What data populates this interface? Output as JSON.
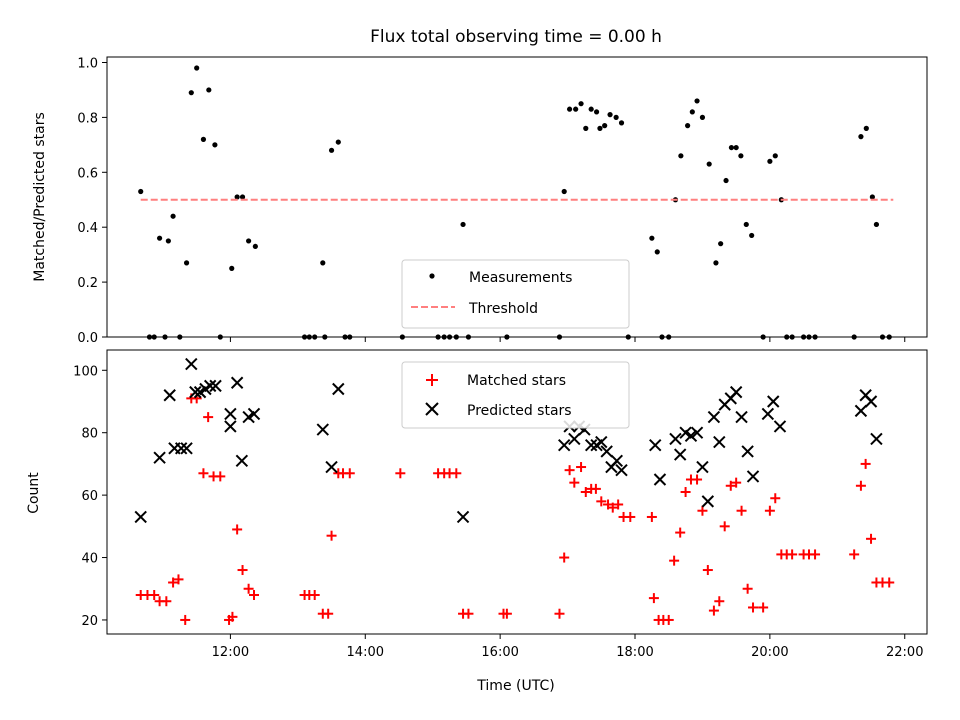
{
  "chart_data": [
    {
      "type": "scatter",
      "title": "Flux total observing time = 0.00 h",
      "xlabel": "",
      "ylabel": "Matched/Predicted stars",
      "xlim": [
        10.17,
        22.33
      ],
      "ylim": [
        0,
        1.02
      ],
      "yticks": [
        "0.0",
        "0.2",
        "0.4",
        "0.6",
        "0.8",
        "1.0"
      ],
      "legend": {
        "placement": "lower-center",
        "entries": [
          "Measurements",
          "Threshold"
        ]
      },
      "colors": {
        "measurements": "#000000",
        "threshold": "#ff7f7f"
      },
      "series": [
        {
          "name": "Measurements",
          "marker": "dot",
          "points": [
            [
              10.67,
              0.53
            ],
            [
              10.8,
              0
            ],
            [
              10.87,
              0
            ],
            [
              10.95,
              0.36
            ],
            [
              11.03,
              0
            ],
            [
              11.08,
              0.35
            ],
            [
              11.15,
              0.44
            ],
            [
              11.25,
              0
            ],
            [
              11.35,
              0.27
            ],
            [
              11.42,
              0.89
            ],
            [
              11.5,
              0.98
            ],
            [
              11.6,
              0.72
            ],
            [
              11.68,
              0.9
            ],
            [
              11.77,
              0.7
            ],
            [
              11.85,
              0
            ],
            [
              12.02,
              0.25
            ],
            [
              12.1,
              0.51
            ],
            [
              12.18,
              0.51
            ],
            [
              12.27,
              0.35
            ],
            [
              12.37,
              0.33
            ],
            [
              13.1,
              0
            ],
            [
              13.17,
              0
            ],
            [
              13.25,
              0
            ],
            [
              13.37,
              0.27
            ],
            [
              13.4,
              0
            ],
            [
              13.5,
              0.68
            ],
            [
              13.6,
              0.71
            ],
            [
              13.7,
              0
            ],
            [
              13.77,
              0
            ],
            [
              14.55,
              0
            ],
            [
              15.08,
              0
            ],
            [
              15.17,
              0
            ],
            [
              15.25,
              0
            ],
            [
              15.35,
              0
            ],
            [
              15.45,
              0.41
            ],
            [
              15.53,
              0
            ],
            [
              16.1,
              0
            ],
            [
              16.88,
              0
            ],
            [
              16.95,
              0.53
            ],
            [
              17.03,
              0.83
            ],
            [
              17.12,
              0.83
            ],
            [
              17.2,
              0.85
            ],
            [
              17.27,
              0.76
            ],
            [
              17.35,
              0.83
            ],
            [
              17.43,
              0.82
            ],
            [
              17.48,
              0.76
            ],
            [
              17.55,
              0.77
            ],
            [
              17.63,
              0.81
            ],
            [
              17.72,
              0.8
            ],
            [
              17.8,
              0.78
            ],
            [
              17.9,
              0
            ],
            [
              18.25,
              0.36
            ],
            [
              18.33,
              0.31
            ],
            [
              18.4,
              0
            ],
            [
              18.5,
              0
            ],
            [
              18.6,
              0.5
            ],
            [
              18.68,
              0.66
            ],
            [
              18.78,
              0.77
            ],
            [
              18.85,
              0.82
            ],
            [
              18.92,
              0.86
            ],
            [
              19.0,
              0.8
            ],
            [
              19.1,
              0.63
            ],
            [
              19.2,
              0.27
            ],
            [
              19.27,
              0.34
            ],
            [
              19.35,
              0.57
            ],
            [
              19.43,
              0.69
            ],
            [
              19.5,
              0.69
            ],
            [
              19.57,
              0.66
            ],
            [
              19.65,
              0.41
            ],
            [
              19.73,
              0.37
            ],
            [
              19.9,
              0
            ],
            [
              20.0,
              0.64
            ],
            [
              20.08,
              0.66
            ],
            [
              20.17,
              0.5
            ],
            [
              20.25,
              0
            ],
            [
              20.33,
              0
            ],
            [
              20.5,
              0
            ],
            [
              20.58,
              0
            ],
            [
              20.67,
              0
            ],
            [
              21.25,
              0
            ],
            [
              21.35,
              0.73
            ],
            [
              21.43,
              0.76
            ],
            [
              21.52,
              0.51
            ],
            [
              21.58,
              0.41
            ],
            [
              21.67,
              0
            ],
            [
              21.77,
              0
            ]
          ]
        },
        {
          "name": "Threshold",
          "marker": "dashed-line",
          "points": [
            [
              10.67,
              0.5
            ],
            [
              21.83,
              0.5
            ]
          ]
        }
      ]
    },
    {
      "type": "scatter",
      "title": "",
      "xlabel": "Time (UTC)",
      "ylabel": "Count",
      "xlim": [
        10.17,
        22.33
      ],
      "ylim": [
        15.5,
        106.5
      ],
      "xticks": [
        12,
        14,
        16,
        18,
        20,
        22
      ],
      "xtick_labels": [
        "12:00",
        "14:00",
        "16:00",
        "18:00",
        "20:00",
        "22:00"
      ],
      "yticks": [
        "20",
        "40",
        "60",
        "80",
        "100"
      ],
      "legend": {
        "placement": "upper-center",
        "entries": [
          "Matched stars",
          "Predicted stars"
        ]
      },
      "colors": {
        "matched": "#ff0000",
        "predicted": "#000000"
      },
      "series": [
        {
          "name": "Matched stars",
          "marker": "plus",
          "points": [
            [
              10.67,
              28
            ],
            [
              10.77,
              28
            ],
            [
              10.87,
              28
            ],
            [
              10.95,
              26
            ],
            [
              11.05,
              26
            ],
            [
              11.15,
              32
            ],
            [
              11.23,
              33
            ],
            [
              11.33,
              20
            ],
            [
              11.42,
              91
            ],
            [
              11.5,
              91
            ],
            [
              11.6,
              67
            ],
            [
              11.67,
              85
            ],
            [
              11.75,
              66
            ],
            [
              11.85,
              66
            ],
            [
              11.98,
              20
            ],
            [
              12.03,
              21
            ],
            [
              12.1,
              49
            ],
            [
              12.18,
              36
            ],
            [
              12.27,
              30
            ],
            [
              12.35,
              28
            ],
            [
              13.1,
              28
            ],
            [
              13.17,
              28
            ],
            [
              13.25,
              28
            ],
            [
              13.37,
              22
            ],
            [
              13.45,
              22
            ],
            [
              13.5,
              47
            ],
            [
              13.6,
              67
            ],
            [
              13.67,
              67
            ],
            [
              13.77,
              67
            ],
            [
              14.52,
              67
            ],
            [
              15.08,
              67
            ],
            [
              15.17,
              67
            ],
            [
              15.25,
              67
            ],
            [
              15.35,
              67
            ],
            [
              15.45,
              22
            ],
            [
              15.53,
              22
            ],
            [
              16.05,
              22
            ],
            [
              16.1,
              22
            ],
            [
              16.88,
              22
            ],
            [
              16.95,
              40
            ],
            [
              17.03,
              68
            ],
            [
              17.1,
              64
            ],
            [
              17.2,
              69
            ],
            [
              17.27,
              61
            ],
            [
              17.35,
              62
            ],
            [
              17.42,
              62
            ],
            [
              17.5,
              58
            ],
            [
              17.6,
              57
            ],
            [
              17.67,
              56
            ],
            [
              17.75,
              57
            ],
            [
              17.83,
              53
            ],
            [
              17.93,
              53
            ],
            [
              18.25,
              53
            ],
            [
              18.28,
              27
            ],
            [
              18.35,
              20
            ],
            [
              18.42,
              20
            ],
            [
              18.5,
              20
            ],
            [
              18.58,
              39
            ],
            [
              18.67,
              48
            ],
            [
              18.75,
              61
            ],
            [
              18.83,
              65
            ],
            [
              18.92,
              65
            ],
            [
              19.0,
              55
            ],
            [
              19.08,
              36
            ],
            [
              19.17,
              23
            ],
            [
              19.25,
              26
            ],
            [
              19.33,
              50
            ],
            [
              19.42,
              63
            ],
            [
              19.5,
              64
            ],
            [
              19.58,
              55
            ],
            [
              19.67,
              30
            ],
            [
              19.75,
              24
            ],
            [
              19.9,
              24
            ],
            [
              20.0,
              55
            ],
            [
              20.08,
              59
            ],
            [
              20.17,
              41
            ],
            [
              20.25,
              41
            ],
            [
              20.33,
              41
            ],
            [
              20.5,
              41
            ],
            [
              20.58,
              41
            ],
            [
              20.67,
              41
            ],
            [
              21.25,
              41
            ],
            [
              21.35,
              63
            ],
            [
              21.42,
              70
            ],
            [
              21.5,
              46
            ],
            [
              21.58,
              32
            ],
            [
              21.67,
              32
            ],
            [
              21.77,
              32
            ]
          ]
        },
        {
          "name": "Predicted stars",
          "marker": "x",
          "points": [
            [
              10.67,
              53
            ],
            [
              10.95,
              72
            ],
            [
              11.1,
              92
            ],
            [
              11.17,
              75
            ],
            [
              11.27,
              75
            ],
            [
              11.35,
              75
            ],
            [
              11.42,
              102
            ],
            [
              11.48,
              93
            ],
            [
              11.55,
              93
            ],
            [
              11.63,
              94
            ],
            [
              11.7,
              95
            ],
            [
              11.78,
              95
            ],
            [
              12.0,
              86
            ],
            [
              12.0,
              82
            ],
            [
              12.1,
              96
            ],
            [
              12.17,
              71
            ],
            [
              12.27,
              85
            ],
            [
              12.35,
              86
            ],
            [
              13.37,
              81
            ],
            [
              13.5,
              69
            ],
            [
              13.6,
              94
            ],
            [
              15.45,
              53
            ],
            [
              16.95,
              76
            ],
            [
              17.03,
              82
            ],
            [
              17.1,
              78
            ],
            [
              17.17,
              82
            ],
            [
              17.25,
              81
            ],
            [
              17.35,
              76
            ],
            [
              17.43,
              76
            ],
            [
              17.5,
              77
            ],
            [
              17.58,
              74
            ],
            [
              17.65,
              69
            ],
            [
              17.73,
              71
            ],
            [
              17.8,
              68
            ],
            [
              18.3,
              76
            ],
            [
              18.37,
              65
            ],
            [
              18.6,
              78
            ],
            [
              18.67,
              73
            ],
            [
              18.75,
              80
            ],
            [
              18.83,
              79
            ],
            [
              18.92,
              80
            ],
            [
              19.0,
              69
            ],
            [
              19.08,
              58
            ],
            [
              19.17,
              85
            ],
            [
              19.25,
              77
            ],
            [
              19.33,
              89
            ],
            [
              19.42,
              91
            ],
            [
              19.5,
              93
            ],
            [
              19.58,
              85
            ],
            [
              19.67,
              74
            ],
            [
              19.75,
              66
            ],
            [
              19.97,
              86
            ],
            [
              20.05,
              90
            ],
            [
              20.15,
              82
            ],
            [
              21.35,
              87
            ],
            [
              21.42,
              92
            ],
            [
              21.5,
              90
            ],
            [
              21.58,
              78
            ]
          ]
        }
      ]
    }
  ]
}
